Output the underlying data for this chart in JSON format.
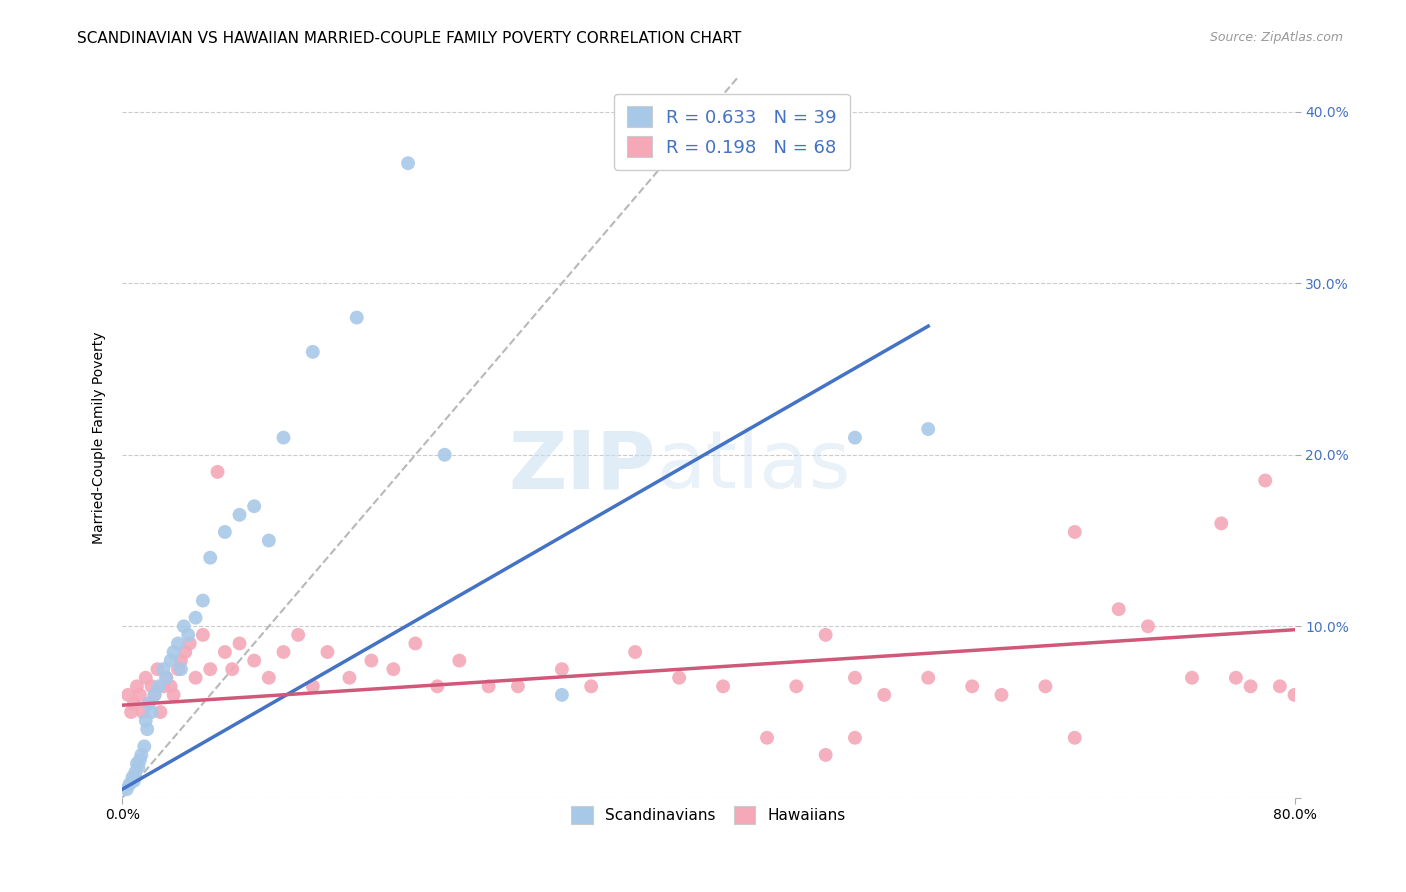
{
  "title": "SCANDINAVIAN VS HAWAIIAN MARRIED-COUPLE FAMILY POVERTY CORRELATION CHART",
  "source": "Source: ZipAtlas.com",
  "ylabel": "Married-Couple Family Poverty",
  "xlim": [
    0,
    0.8
  ],
  "ylim": [
    0,
    0.42
  ],
  "yticks": [
    0.0,
    0.1,
    0.2,
    0.3,
    0.4
  ],
  "ytick_labels": [
    "",
    "10.0%",
    "20.0%",
    "30.0%",
    "40.0%"
  ],
  "scandinavian_color": "#a8c8e8",
  "hawaiian_color": "#f4a8b8",
  "line_blue": "#4472c4",
  "line_pink": "#d05878",
  "diagonal_color": "#b8b8b8",
  "legend_R_blue": "0.633",
  "legend_N_blue": "39",
  "legend_R_pink": "0.198",
  "legend_N_pink": "68",
  "blue_line_x0": 0.0,
  "blue_line_y0": 0.005,
  "blue_line_x1": 0.55,
  "blue_line_y1": 0.275,
  "pink_line_x0": 0.0,
  "pink_line_y0": 0.054,
  "pink_line_x1": 0.8,
  "pink_line_y1": 0.098,
  "scandinavian_x": [
    0.003,
    0.005,
    0.007,
    0.008,
    0.009,
    0.01,
    0.011,
    0.012,
    0.013,
    0.015,
    0.016,
    0.017,
    0.018,
    0.02,
    0.022,
    0.025,
    0.028,
    0.03,
    0.033,
    0.035,
    0.038,
    0.04,
    0.042,
    0.045,
    0.05,
    0.055,
    0.06,
    0.07,
    0.08,
    0.09,
    0.1,
    0.11,
    0.13,
    0.16,
    0.195,
    0.22,
    0.3,
    0.5,
    0.55
  ],
  "scandinavian_y": [
    0.005,
    0.008,
    0.012,
    0.01,
    0.015,
    0.02,
    0.018,
    0.022,
    0.025,
    0.03,
    0.045,
    0.04,
    0.055,
    0.05,
    0.06,
    0.065,
    0.075,
    0.07,
    0.08,
    0.085,
    0.09,
    0.075,
    0.1,
    0.095,
    0.105,
    0.115,
    0.14,
    0.155,
    0.165,
    0.17,
    0.15,
    0.21,
    0.26,
    0.28,
    0.37,
    0.2,
    0.06,
    0.21,
    0.215
  ],
  "hawaiian_x": [
    0.004,
    0.006,
    0.008,
    0.01,
    0.012,
    0.014,
    0.016,
    0.018,
    0.02,
    0.022,
    0.024,
    0.026,
    0.028,
    0.03,
    0.033,
    0.035,
    0.038,
    0.04,
    0.043,
    0.046,
    0.05,
    0.055,
    0.06,
    0.065,
    0.07,
    0.075,
    0.08,
    0.09,
    0.1,
    0.11,
    0.12,
    0.13,
    0.14,
    0.155,
    0.17,
    0.185,
    0.2,
    0.215,
    0.23,
    0.25,
    0.27,
    0.3,
    0.32,
    0.35,
    0.38,
    0.41,
    0.44,
    0.46,
    0.48,
    0.5,
    0.52,
    0.55,
    0.58,
    0.6,
    0.63,
    0.65,
    0.68,
    0.7,
    0.73,
    0.75,
    0.76,
    0.77,
    0.78,
    0.79,
    0.8,
    0.48,
    0.5,
    0.65
  ],
  "hawaiian_y": [
    0.06,
    0.05,
    0.055,
    0.065,
    0.06,
    0.05,
    0.07,
    0.055,
    0.065,
    0.06,
    0.075,
    0.05,
    0.065,
    0.07,
    0.065,
    0.06,
    0.075,
    0.08,
    0.085,
    0.09,
    0.07,
    0.095,
    0.075,
    0.19,
    0.085,
    0.075,
    0.09,
    0.08,
    0.07,
    0.085,
    0.095,
    0.065,
    0.085,
    0.07,
    0.08,
    0.075,
    0.09,
    0.065,
    0.08,
    0.065,
    0.065,
    0.075,
    0.065,
    0.085,
    0.07,
    0.065,
    0.035,
    0.065,
    0.095,
    0.07,
    0.06,
    0.07,
    0.065,
    0.06,
    0.065,
    0.035,
    0.11,
    0.1,
    0.07,
    0.16,
    0.07,
    0.065,
    0.185,
    0.065,
    0.06,
    0.025,
    0.035,
    0.155
  ],
  "background_color": "#ffffff",
  "grid_color": "#cccccc",
  "title_fontsize": 11,
  "axis_label_fontsize": 10,
  "tick_fontsize": 10,
  "watermark_zip": "ZIP",
  "watermark_atlas": "atlas"
}
